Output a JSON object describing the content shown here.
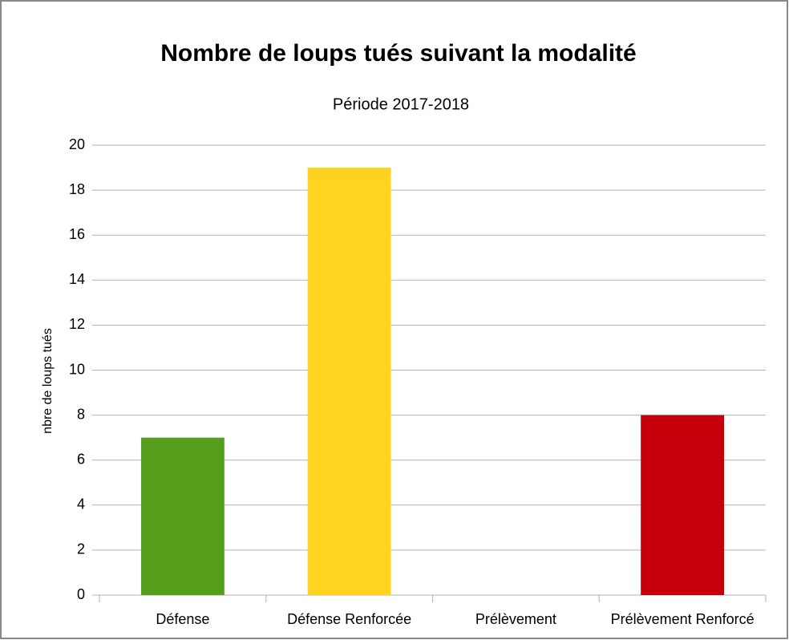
{
  "chart_data": {
    "type": "bar",
    "title": "Nombre de loups tués suivant la modalité",
    "subtitle": "Période 2017-2018",
    "y_label": "nbre  de loups tués",
    "categories": [
      "Défense",
      "Défense Renforcée",
      "Prélèvement",
      "Prélèvement Renforcé"
    ],
    "values": [
      7,
      19,
      0,
      8
    ],
    "colors": [
      "#579d1c",
      "#ffd320",
      "#ff420e",
      "#c5000b"
    ],
    "ylim": [
      0,
      20
    ],
    "yticks": [
      0,
      2,
      4,
      6,
      8,
      10,
      12,
      14,
      16,
      18,
      20
    ],
    "grid": true
  }
}
